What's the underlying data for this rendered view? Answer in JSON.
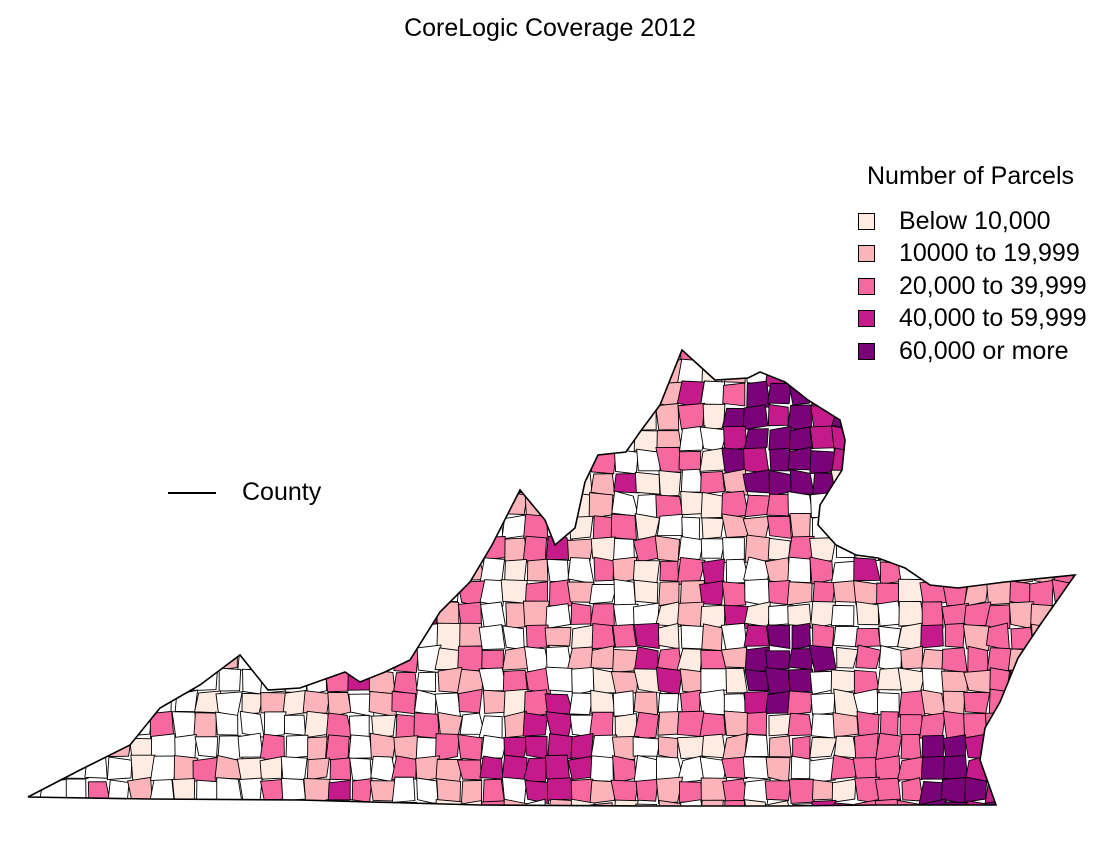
{
  "title": "CoreLogic Coverage 2012",
  "legend": {
    "title": "Number of Parcels",
    "items": [
      {
        "label": "Below 10,000",
        "color": "#FEEBE2"
      },
      {
        "label": "10000 to 19,999",
        "color": "#FBB4B9"
      },
      {
        "label": "20,000 to 39,999",
        "color": "#F768A1"
      },
      {
        "label": "40,000 to 59,999",
        "color": "#C51B8A"
      },
      {
        "label": "60,000 or more",
        "color": "#7A0177"
      }
    ]
  },
  "boundary_legend": {
    "label": "County"
  },
  "map": {
    "region": "Virginia",
    "layers": [
      "county boundaries",
      "parcel-count choropleth"
    ]
  }
}
